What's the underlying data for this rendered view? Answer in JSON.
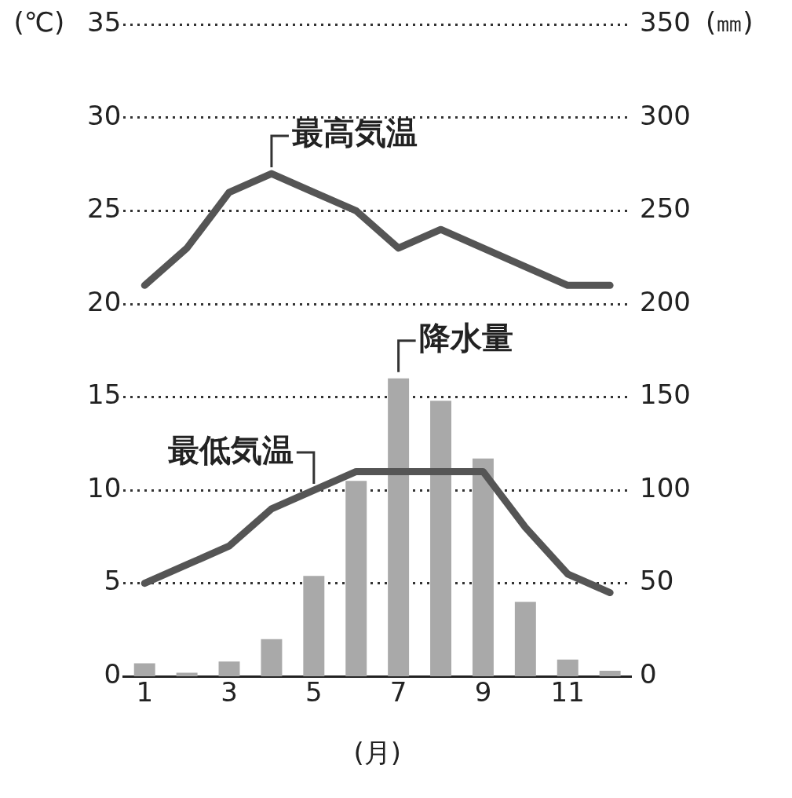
{
  "chart_data": {
    "type": "line",
    "xlabel": "(月)",
    "ylabel": "(℃)",
    "y2label": "(㎜)",
    "x": [
      1,
      2,
      3,
      4,
      5,
      6,
      7,
      8,
      9,
      10,
      11,
      12
    ],
    "xlim": [
      0.5,
      12.5
    ],
    "xticks": [
      1,
      3,
      5,
      7,
      9,
      11
    ],
    "ylim": [
      0,
      35
    ],
    "yticks": [
      0,
      5,
      10,
      15,
      20,
      25,
      30,
      35
    ],
    "y2lim": [
      0,
      350
    ],
    "y2ticks": [
      0,
      50,
      100,
      150,
      200,
      250,
      300,
      350
    ],
    "grid": "y",
    "marker": "none",
    "line_style": "solid",
    "series": [
      {
        "type": "bar",
        "axis": "y2",
        "color": "#a9a9a9",
        "values": [
          7,
          2,
          8,
          20,
          54,
          105,
          160,
          148,
          117,
          40,
          9,
          3
        ]
      },
      {
        "color": "#555555",
        "values": [
          21,
          23,
          26,
          27,
          26,
          25,
          23,
          24,
          23,
          22,
          21,
          21
        ]
      },
      {
        "color": "#555555",
        "values": [
          5,
          6,
          7,
          9,
          10,
          11,
          11,
          11,
          11,
          8,
          5.5,
          4.5
        ]
      }
    ],
    "annotations": [
      {
        "text": "最高気温",
        "x": 4,
        "y": 27
      },
      {
        "text": "最低気温",
        "x": 5,
        "y": 10
      },
      {
        "text": "降水量",
        "x": 7,
        "y": 16
      }
    ]
  }
}
